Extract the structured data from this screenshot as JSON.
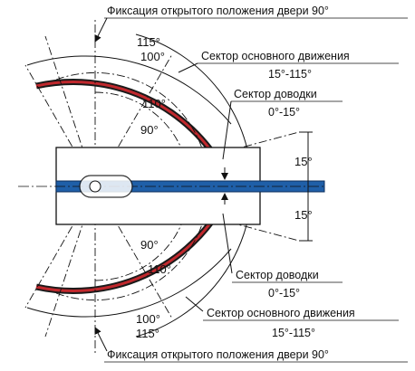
{
  "colors": {
    "arc_outer": "#1a1a1a",
    "arc_red": "#c0282d",
    "beam": "#1f5fa8",
    "line": "#111111"
  },
  "labels": {
    "fix_top": "Фиксация открытого положения двери 90°",
    "fix_bottom": "Фиксация открытого положения двери 90°",
    "main_sector_top": "Сектор основного движения",
    "main_sector_top_range": "15°-115°",
    "close_sector_top": "Сектор доводки",
    "close_sector_top_range": "0°-15°",
    "close_sector_bottom": "Сектор доводки",
    "close_sector_bottom_range": "0°-15°",
    "main_sector_bottom": "Сектор основного движения",
    "main_sector_bottom_range": "15°-115°"
  },
  "angles": {
    "a115_top": "115°",
    "a100_top": "100°",
    "a110_top": "110°",
    "a90_top": "90°",
    "a15_upper": "15°",
    "a15_lower": "15°",
    "a90_bottom": "90°",
    "a110_bottom": "110°",
    "a100_bottom": "100°",
    "a115_bottom": "115°"
  }
}
